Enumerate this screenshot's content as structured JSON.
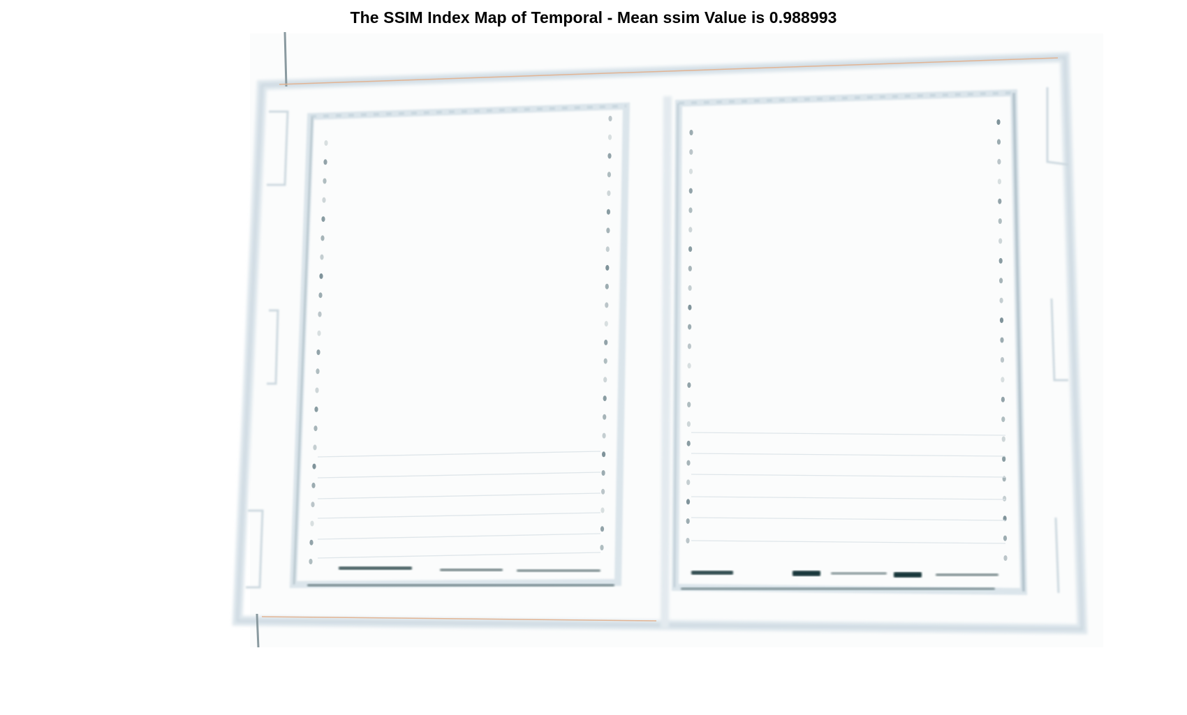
{
  "figure": {
    "title": "The SSIM Index Map of Temporal - Mean ssim Value is 0.988993"
  },
  "colors": {
    "background": "#ffffff",
    "title_text": "#000000",
    "structure_light": "#dfe8ee",
    "structure_mid": "#c6d3dc",
    "dot_dark": "#5a7077",
    "artifact_dark": "#0c2a30",
    "edge_orange": "#d9a27a"
  }
}
